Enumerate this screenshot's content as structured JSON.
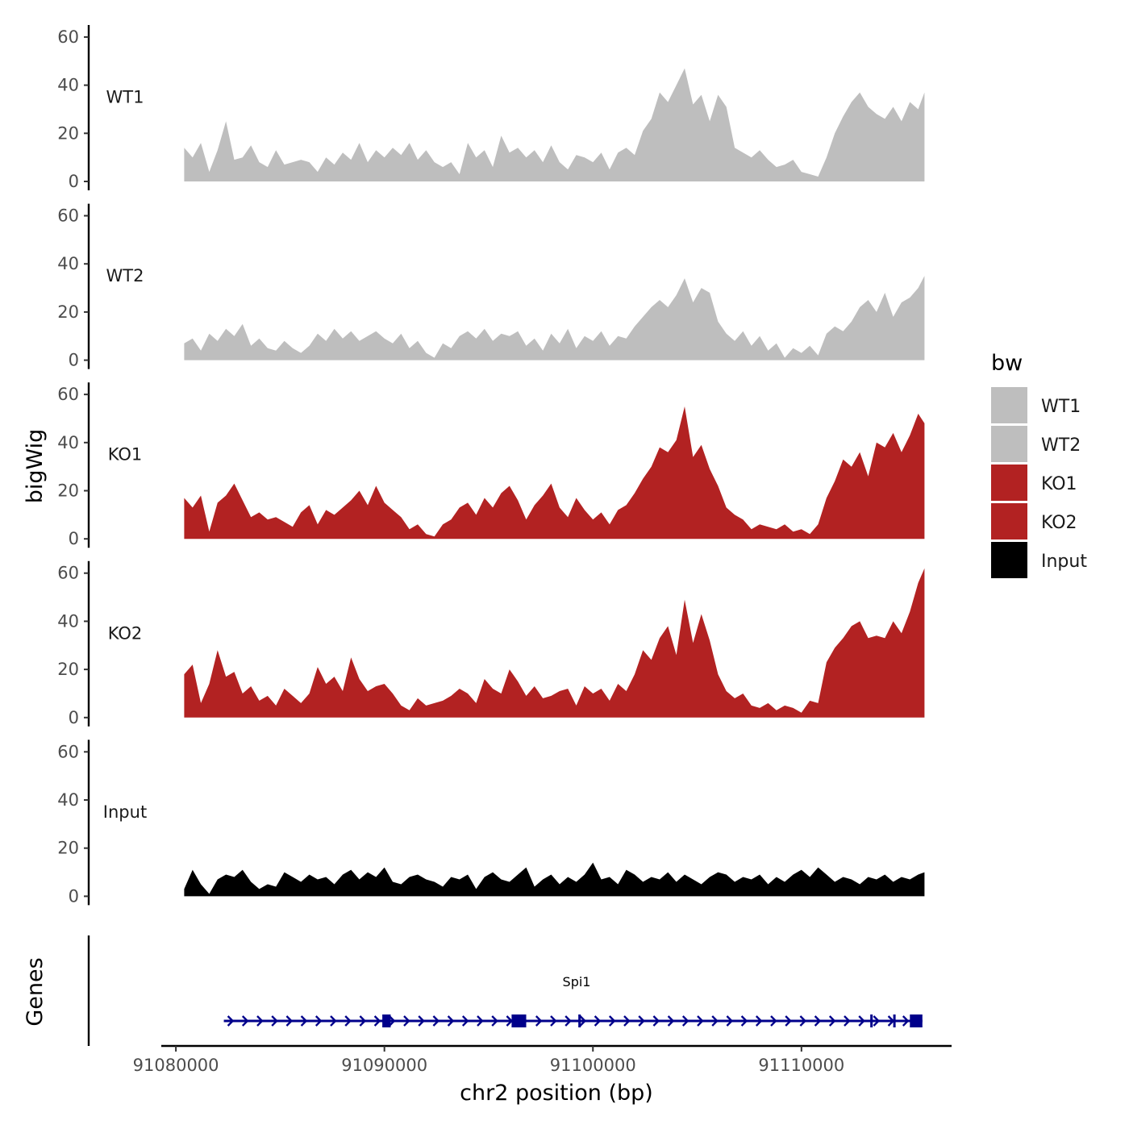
{
  "chart_data": {
    "type": "area",
    "title": "",
    "xlabel": "chr2 position (bp)",
    "ylabel": "bigWig",
    "genes_label": "Genes",
    "xlim": [
      91079300,
      91117200
    ],
    "x_ticks": [
      91080000,
      91090000,
      91100000,
      91110000
    ],
    "x_tick_labels": [
      "91080000",
      "91090000",
      "91100000",
      "91110000"
    ],
    "ylim": [
      0,
      65
    ],
    "y_ticks": [
      0,
      20,
      40,
      60
    ],
    "y_tick_labels": [
      "0",
      "20",
      "40",
      "60"
    ],
    "legend": {
      "title": "bw",
      "position": "right"
    },
    "series": [
      {
        "name": "WT1",
        "color": "#bebebe",
        "x": [
          91080400,
          91080800,
          91081200,
          91081600,
          91082000,
          91082400,
          91082800,
          91083200,
          91083600,
          91084000,
          91084400,
          91084800,
          91085200,
          91085600,
          91086000,
          91086400,
          91086800,
          91087200,
          91087600,
          91088000,
          91088400,
          91088800,
          91089200,
          91089600,
          91090000,
          91090400,
          91090800,
          91091200,
          91091600,
          91092000,
          91092400,
          91092800,
          91093200,
          91093600,
          91094000,
          91094400,
          91094800,
          91095200,
          91095600,
          91096000,
          91096400,
          91096800,
          91097200,
          91097600,
          91098000,
          91098400,
          91098800,
          91099200,
          91099600,
          91100000,
          91100400,
          91100800,
          91101200,
          91101600,
          91102000,
          91102400,
          91102800,
          91103200,
          91103600,
          91104000,
          91104400,
          91104800,
          91105200,
          91105600,
          91106000,
          91106400,
          91106800,
          91107200,
          91107600,
          91108000,
          91108400,
          91108800,
          91109200,
          91109600,
          91110000,
          91110400,
          91110800,
          91111200,
          91111600,
          91112000,
          91112400,
          91112800,
          91113200,
          91113600,
          91114000,
          91114400,
          91114800,
          91115200,
          91115600,
          91115900
        ],
        "values": [
          14,
          10,
          16,
          4,
          13,
          25,
          9,
          10,
          15,
          8,
          6,
          13,
          7,
          8,
          9,
          8,
          4,
          10,
          7,
          12,
          9,
          16,
          8,
          13,
          10,
          14,
          11,
          16,
          9,
          13,
          8,
          6,
          8,
          3,
          16,
          10,
          13,
          6,
          19,
          12,
          14,
          10,
          13,
          8,
          15,
          8,
          5,
          11,
          10,
          8,
          12,
          5,
          12,
          14,
          11,
          21,
          26,
          37,
          33,
          40,
          47,
          32,
          36,
          25,
          36,
          31,
          14,
          12,
          10,
          13,
          9,
          6,
          7,
          9,
          4,
          3,
          2,
          10,
          20,
          27,
          33,
          37,
          31,
          28,
          26,
          31,
          25,
          33,
          30,
          37
        ]
      },
      {
        "name": "WT2",
        "color": "#bebebe",
        "x": [
          91080400,
          91080800,
          91081200,
          91081600,
          91082000,
          91082400,
          91082800,
          91083200,
          91083600,
          91084000,
          91084400,
          91084800,
          91085200,
          91085600,
          91086000,
          91086400,
          91086800,
          91087200,
          91087600,
          91088000,
          91088400,
          91088800,
          91089200,
          91089600,
          91090000,
          91090400,
          91090800,
          91091200,
          91091600,
          91092000,
          91092400,
          91092800,
          91093200,
          91093600,
          91094000,
          91094400,
          91094800,
          91095200,
          91095600,
          91096000,
          91096400,
          91096800,
          91097200,
          91097600,
          91098000,
          91098400,
          91098800,
          91099200,
          91099600,
          91100000,
          91100400,
          91100800,
          91101200,
          91101600,
          91102000,
          91102400,
          91102800,
          91103200,
          91103600,
          91104000,
          91104400,
          91104800,
          91105200,
          91105600,
          91106000,
          91106400,
          91106800,
          91107200,
          91107600,
          91108000,
          91108400,
          91108800,
          91109200,
          91109600,
          91110000,
          91110400,
          91110800,
          91111200,
          91111600,
          91112000,
          91112400,
          91112800,
          91113200,
          91113600,
          91114000,
          91114400,
          91114800,
          91115200,
          91115600,
          91115900
        ],
        "values": [
          7,
          9,
          4,
          11,
          8,
          13,
          10,
          15,
          6,
          9,
          5,
          4,
          8,
          5,
          3,
          6,
          11,
          8,
          13,
          9,
          12,
          8,
          10,
          12,
          9,
          7,
          11,
          5,
          8,
          3,
          1,
          7,
          5,
          10,
          12,
          9,
          13,
          8,
          11,
          10,
          12,
          6,
          9,
          4,
          11,
          7,
          13,
          5,
          10,
          8,
          12,
          6,
          10,
          9,
          14,
          18,
          22,
          25,
          22,
          27,
          34,
          24,
          30,
          28,
          16,
          11,
          8,
          12,
          6,
          10,
          4,
          7,
          1,
          5,
          3,
          6,
          2,
          11,
          14,
          12,
          16,
          22,
          25,
          20,
          28,
          18,
          24,
          26,
          30,
          35
        ]
      },
      {
        "name": "KO1",
        "color": "#b22222",
        "x": [
          91080400,
          91080800,
          91081200,
          91081600,
          91082000,
          91082400,
          91082800,
          91083200,
          91083600,
          91084000,
          91084400,
          91084800,
          91085200,
          91085600,
          91086000,
          91086400,
          91086800,
          91087200,
          91087600,
          91088000,
          91088400,
          91088800,
          91089200,
          91089600,
          91090000,
          91090400,
          91090800,
          91091200,
          91091600,
          91092000,
          91092400,
          91092800,
          91093200,
          91093600,
          91094000,
          91094400,
          91094800,
          91095200,
          91095600,
          91096000,
          91096400,
          91096800,
          91097200,
          91097600,
          91098000,
          91098400,
          91098800,
          91099200,
          91099600,
          91100000,
          91100400,
          91100800,
          91101200,
          91101600,
          91102000,
          91102400,
          91102800,
          91103200,
          91103600,
          91104000,
          91104400,
          91104800,
          91105200,
          91105600,
          91106000,
          91106400,
          91106800,
          91107200,
          91107600,
          91108000,
          91108400,
          91108800,
          91109200,
          91109600,
          91110000,
          91110400,
          91110800,
          91111200,
          91111600,
          91112000,
          91112400,
          91112800,
          91113200,
          91113600,
          91114000,
          91114400,
          91114800,
          91115200,
          91115600,
          91115900
        ],
        "values": [
          17,
          13,
          18,
          3,
          15,
          18,
          23,
          16,
          9,
          11,
          8,
          9,
          7,
          5,
          11,
          14,
          6,
          12,
          10,
          13,
          16,
          20,
          14,
          22,
          15,
          12,
          9,
          4,
          6,
          2,
          1,
          6,
          8,
          13,
          15,
          10,
          17,
          13,
          19,
          22,
          16,
          8,
          14,
          18,
          23,
          13,
          9,
          17,
          12,
          8,
          11,
          6,
          12,
          14,
          19,
          25,
          30,
          38,
          36,
          41,
          55,
          34,
          39,
          29,
          22,
          13,
          10,
          8,
          4,
          6,
          5,
          4,
          6,
          3,
          4,
          2,
          6,
          17,
          24,
          33,
          30,
          36,
          26,
          40,
          38,
          44,
          36,
          43,
          52,
          48
        ]
      },
      {
        "name": "KO2",
        "color": "#b22222",
        "x": [
          91080400,
          91080800,
          91081200,
          91081600,
          91082000,
          91082400,
          91082800,
          91083200,
          91083600,
          91084000,
          91084400,
          91084800,
          91085200,
          91085600,
          91086000,
          91086400,
          91086800,
          91087200,
          91087600,
          91088000,
          91088400,
          91088800,
          91089200,
          91089600,
          91090000,
          91090400,
          91090800,
          91091200,
          91091600,
          91092000,
          91092400,
          91092800,
          91093200,
          91093600,
          91094000,
          91094400,
          91094800,
          91095200,
          91095600,
          91096000,
          91096400,
          91096800,
          91097200,
          91097600,
          91098000,
          91098400,
          91098800,
          91099200,
          91099600,
          91100000,
          91100400,
          91100800,
          91101200,
          91101600,
          91102000,
          91102400,
          91102800,
          91103200,
          91103600,
          91104000,
          91104400,
          91104800,
          91105200,
          91105600,
          91106000,
          91106400,
          91106800,
          91107200,
          91107600,
          91108000,
          91108400,
          91108800,
          91109200,
          91109600,
          91110000,
          91110400,
          91110800,
          91111200,
          91111600,
          91112000,
          91112400,
          91112800,
          91113200,
          91113600,
          91114000,
          91114400,
          91114800,
          91115200,
          91115600,
          91115900
        ],
        "values": [
          18,
          22,
          6,
          14,
          28,
          17,
          19,
          10,
          13,
          7,
          9,
          5,
          12,
          9,
          6,
          10,
          21,
          14,
          17,
          11,
          25,
          16,
          11,
          13,
          14,
          10,
          5,
          3,
          8,
          5,
          6,
          7,
          9,
          12,
          10,
          6,
          16,
          12,
          10,
          20,
          15,
          9,
          13,
          8,
          9,
          11,
          12,
          5,
          13,
          10,
          12,
          7,
          14,
          11,
          18,
          28,
          24,
          33,
          38,
          26,
          49,
          31,
          43,
          32,
          18,
          11,
          8,
          10,
          5,
          4,
          6,
          3,
          5,
          4,
          2,
          7,
          6,
          23,
          29,
          33,
          38,
          40,
          33,
          34,
          33,
          40,
          35,
          44,
          56,
          62
        ]
      },
      {
        "name": "Input",
        "color": "#000000",
        "x": [
          91080400,
          91080800,
          91081200,
          91081600,
          91082000,
          91082400,
          91082800,
          91083200,
          91083600,
          91084000,
          91084400,
          91084800,
          91085200,
          91085600,
          91086000,
          91086400,
          91086800,
          91087200,
          91087600,
          91088000,
          91088400,
          91088800,
          91089200,
          91089600,
          91090000,
          91090400,
          91090800,
          91091200,
          91091600,
          91092000,
          91092400,
          91092800,
          91093200,
          91093600,
          91094000,
          91094400,
          91094800,
          91095200,
          91095600,
          91096000,
          91096400,
          91096800,
          91097200,
          91097600,
          91098000,
          91098400,
          91098800,
          91099200,
          91099600,
          91100000,
          91100400,
          91100800,
          91101200,
          91101600,
          91102000,
          91102400,
          91102800,
          91103200,
          91103600,
          91104000,
          91104400,
          91104800,
          91105200,
          91105600,
          91106000,
          91106400,
          91106800,
          91107200,
          91107600,
          91108000,
          91108400,
          91108800,
          91109200,
          91109600,
          91110000,
          91110400,
          91110800,
          91111200,
          91111600,
          91112000,
          91112400,
          91112800,
          91113200,
          91113600,
          91114000,
          91114400,
          91114800,
          91115200,
          91115600,
          91115900
        ],
        "values": [
          3,
          11,
          5,
          1,
          7,
          9,
          8,
          11,
          6,
          3,
          5,
          4,
          10,
          8,
          6,
          9,
          7,
          8,
          5,
          9,
          11,
          7,
          10,
          8,
          12,
          6,
          5,
          8,
          9,
          7,
          6,
          4,
          8,
          7,
          9,
          3,
          8,
          10,
          7,
          6,
          9,
          12,
          4,
          7,
          9,
          5,
          8,
          6,
          9,
          14,
          7,
          8,
          5,
          11,
          9,
          6,
          8,
          7,
          10,
          6,
          9,
          7,
          5,
          8,
          10,
          9,
          6,
          8,
          7,
          9,
          5,
          8,
          6,
          9,
          11,
          8,
          12,
          9,
          6,
          8,
          7,
          5,
          8,
          7,
          9,
          6,
          8,
          7,
          9,
          10
        ]
      }
    ],
    "gene_track": {
      "gene": "Spi1",
      "color": "#00008b",
      "strand": "+",
      "start": 91082300,
      "end": 91115800,
      "exons": [
        {
          "start": 91089900,
          "end": 91090300
        },
        {
          "start": 91096100,
          "end": 91096800
        },
        {
          "start": 91099300,
          "end": 91099400
        },
        {
          "start": 91113300,
          "end": 91113400
        },
        {
          "start": 91114400,
          "end": 91114500
        },
        {
          "start": 91115200,
          "end": 91115800
        }
      ]
    }
  }
}
